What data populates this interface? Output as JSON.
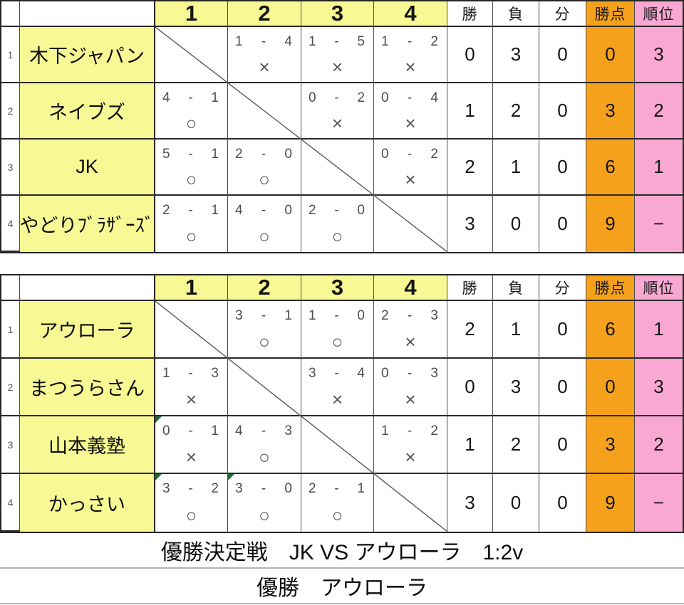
{
  "columns": {
    "opponents": [
      "1",
      "2",
      "3",
      "4"
    ],
    "stats": [
      "勝",
      "負",
      "分",
      "勝点",
      "順位"
    ]
  },
  "marks": {
    "win": "○",
    "loss": "×",
    "dash": "-"
  },
  "colors": {
    "header_yellow": "#f8f894",
    "points_orange": "#f5a11c",
    "rank_pink": "#f8a8d2",
    "flag_green": "#1e6b30"
  },
  "tables": [
    {
      "name": "league-a",
      "rows": [
        {
          "num": "1",
          "team": "木下ジャパン",
          "results": [
            null,
            {
              "h": "1",
              "a": "4",
              "mark": "×"
            },
            {
              "h": "1",
              "a": "5",
              "mark": "×"
            },
            {
              "h": "1",
              "a": "2",
              "mark": "×"
            }
          ],
          "win": "0",
          "lose": "3",
          "draw": "0",
          "points": "0",
          "rank": "3"
        },
        {
          "num": "2",
          "team": "ネイブズ",
          "results": [
            {
              "h": "4",
              "a": "1",
              "mark": "○"
            },
            null,
            {
              "h": "0",
              "a": "2",
              "mark": "×"
            },
            {
              "h": "0",
              "a": "4",
              "mark": "×"
            }
          ],
          "win": "1",
          "lose": "2",
          "draw": "0",
          "points": "3",
          "rank": "2"
        },
        {
          "num": "3",
          "team": "JK",
          "results": [
            {
              "h": "5",
              "a": "1",
              "mark": "○"
            },
            {
              "h": "2",
              "a": "0",
              "mark": "○"
            },
            null,
            {
              "h": "0",
              "a": "2",
              "mark": "×"
            }
          ],
          "win": "2",
          "lose": "1",
          "draw": "0",
          "points": "6",
          "rank": "1"
        },
        {
          "num": "4",
          "team": "やどりﾌﾞﾗｻﾞｰｽﾞ",
          "results": [
            {
              "h": "2",
              "a": "1",
              "mark": "○"
            },
            {
              "h": "4",
              "a": "0",
              "mark": "○"
            },
            {
              "h": "2",
              "a": "0",
              "mark": "○"
            },
            null
          ],
          "win": "3",
          "lose": "0",
          "draw": "0",
          "points": "9",
          "rank": "−"
        }
      ]
    },
    {
      "name": "league-b",
      "rows": [
        {
          "num": "1",
          "team": "アウローラ",
          "results": [
            null,
            {
              "h": "3",
              "a": "1",
              "mark": "○"
            },
            {
              "h": "1",
              "a": "0",
              "mark": "○"
            },
            {
              "h": "2",
              "a": "3",
              "mark": "×"
            }
          ],
          "win": "2",
          "lose": "1",
          "draw": "0",
          "points": "6",
          "rank": "1"
        },
        {
          "num": "2",
          "team": "まつうらさん",
          "results": [
            {
              "h": "1",
              "a": "3",
              "mark": "×"
            },
            null,
            {
              "h": "3",
              "a": "4",
              "mark": "×"
            },
            {
              "h": "0",
              "a": "3",
              "mark": "×"
            }
          ],
          "win": "0",
          "lose": "3",
          "draw": "0",
          "points": "0",
          "rank": "3"
        },
        {
          "num": "3",
          "team": "山本義塾",
          "results": [
            {
              "h": "0",
              "a": "1",
              "mark": "×",
              "flag": true
            },
            {
              "h": "4",
              "a": "3",
              "mark": "○"
            },
            null,
            {
              "h": "1",
              "a": "2",
              "mark": "×"
            }
          ],
          "win": "1",
          "lose": "2",
          "draw": "0",
          "points": "3",
          "rank": "2"
        },
        {
          "num": "4",
          "team": "かっさい",
          "results": [
            {
              "h": "3",
              "a": "2",
              "mark": "○",
              "flag": true
            },
            {
              "h": "3",
              "a": "0",
              "mark": "○",
              "flag": true
            },
            {
              "h": "2",
              "a": "1",
              "mark": "○"
            },
            null
          ],
          "win": "3",
          "lose": "0",
          "draw": "0",
          "points": "9",
          "rank": "−"
        }
      ]
    }
  ],
  "footer": {
    "final_match": "優勝決定戦　JK VS アウローラ　1:2v",
    "champion": "優勝　アウローラ"
  }
}
